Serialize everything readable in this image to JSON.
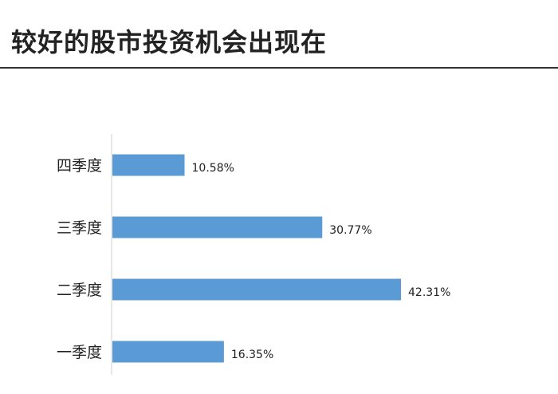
{
  "chart_data": {
    "type": "bar",
    "orientation": "horizontal",
    "title": "较好的股市投资机会出现在",
    "categories": [
      "四季度",
      "三季度",
      "二季度",
      "一季度"
    ],
    "values": [
      10.58,
      30.77,
      42.31,
      16.35
    ],
    "value_labels": [
      "10.58%",
      "30.77%",
      "42.31%",
      "16.35%"
    ],
    "unit": "%",
    "xlim": [
      0,
      50
    ],
    "grid": false,
    "legend": "none",
    "bar_color": "#5b9bd5"
  }
}
